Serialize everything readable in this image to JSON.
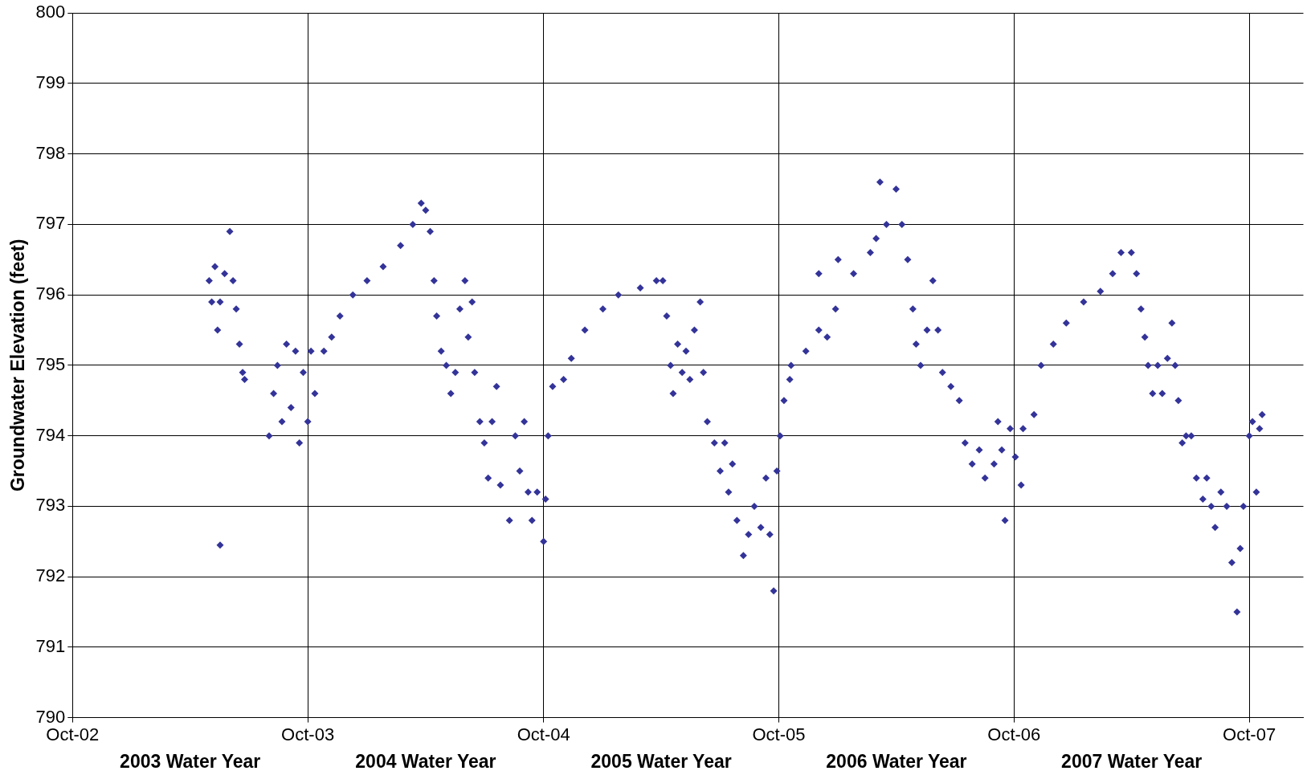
{
  "chart_data": {
    "type": "scatter",
    "ylabel": "Groundwater Elevation (feet)",
    "marker": "diamond",
    "grid": true,
    "legend": false,
    "xlim": [
      "2002-10-01",
      "2007-12-24"
    ],
    "xticks": [
      {
        "value": "2002-10-01",
        "label": "Oct-02"
      },
      {
        "value": "2003-10-01",
        "label": "Oct-03"
      },
      {
        "value": "2004-10-01",
        "label": "Oct-04"
      },
      {
        "value": "2005-10-01",
        "label": "Oct-05"
      },
      {
        "value": "2006-10-01",
        "label": "Oct-06"
      },
      {
        "value": "2007-10-01",
        "label": "Oct-07"
      }
    ],
    "ylim": [
      790,
      800
    ],
    "yticks": [
      790,
      791,
      792,
      793,
      794,
      795,
      796,
      797,
      798,
      799,
      800
    ],
    "annotations": [
      "2003 Water Year",
      "2004 Water Year",
      "2005 Water Year",
      "2006 Water Year",
      "2007 Water Year"
    ],
    "series": [
      {
        "color": "#333399",
        "x": [
          "2003-05-01",
          "2003-05-05",
          "2003-05-10",
          "2003-05-14",
          "2003-05-18",
          "2003-05-18",
          "2003-05-25",
          "2003-06-02",
          "2003-06-07",
          "2003-06-12",
          "2003-06-17",
          "2003-06-22",
          "2003-06-25",
          "2003-08-02",
          "2003-08-09",
          "2003-08-15",
          "2003-08-22",
          "2003-08-29",
          "2003-09-05",
          "2003-09-12",
          "2003-09-18",
          "2003-09-24",
          "2003-10-01",
          "2003-10-06",
          "2003-10-12",
          "2003-10-26",
          "2003-11-07",
          "2003-11-20",
          "2003-12-10",
          "2004-01-01",
          "2004-01-26",
          "2004-02-22",
          "2004-03-12",
          "2004-03-25",
          "2004-04-01",
          "2004-04-08",
          "2004-04-14",
          "2004-04-18",
          "2004-04-25",
          "2004-05-03",
          "2004-05-10",
          "2004-05-17",
          "2004-05-24",
          "2004-06-01",
          "2004-06-06",
          "2004-06-12",
          "2004-06-16",
          "2004-06-24",
          "2004-07-01",
          "2004-07-07",
          "2004-07-13",
          "2004-07-20",
          "2004-07-26",
          "2004-08-09",
          "2004-08-18",
          "2004-08-25",
          "2004-09-01",
          "2004-09-07",
          "2004-09-13",
          "2004-09-21",
          "2004-10-01",
          "2004-10-04",
          "2004-10-08",
          "2004-10-15",
          "2004-11-01",
          "2004-11-13",
          "2004-12-04",
          "2005-01-01",
          "2005-01-25",
          "2005-02-28",
          "2005-03-25",
          "2005-04-04",
          "2005-04-10",
          "2005-04-16",
          "2005-04-20",
          "2005-04-27",
          "2005-05-04",
          "2005-05-10",
          "2005-05-16",
          "2005-05-23",
          "2005-06-01",
          "2005-06-06",
          "2005-06-12",
          "2005-06-23",
          "2005-07-02",
          "2005-07-09",
          "2005-07-15",
          "2005-07-21",
          "2005-07-28",
          "2005-08-07",
          "2005-08-15",
          "2005-08-24",
          "2005-09-03",
          "2005-09-11",
          "2005-09-17",
          "2005-09-23",
          "2005-09-28",
          "2005-10-03",
          "2005-10-09",
          "2005-10-18",
          "2005-10-20",
          "2005-11-12",
          "2005-12-02",
          "2005-12-02",
          "2005-12-15",
          "2005-12-28",
          "2006-01-01",
          "2006-01-25",
          "2006-02-20",
          "2006-03-01",
          "2006-03-07",
          "2006-03-17",
          "2006-04-01",
          "2006-04-10",
          "2006-04-19",
          "2006-04-27",
          "2006-05-02",
          "2006-05-09",
          "2006-05-19",
          "2006-05-28",
          "2006-06-05",
          "2006-06-12",
          "2006-06-25",
          "2006-07-08",
          "2006-07-17",
          "2006-07-28",
          "2006-08-08",
          "2006-08-17",
          "2006-08-31",
          "2006-09-06",
          "2006-09-12",
          "2006-09-17",
          "2006-09-25",
          "2006-10-03",
          "2006-10-12",
          "2006-10-15",
          "2006-11-01",
          "2006-11-12",
          "2006-12-01",
          "2006-12-21",
          "2007-01-17",
          "2007-02-12",
          "2007-03-03",
          "2007-03-16",
          "2007-04-01",
          "2007-04-09",
          "2007-04-16",
          "2007-04-22",
          "2007-04-27",
          "2007-05-04",
          "2007-05-12",
          "2007-05-19",
          "2007-05-27",
          "2007-06-03",
          "2007-06-08",
          "2007-06-13",
          "2007-06-19",
          "2007-06-25",
          "2007-07-03",
          "2007-07-11",
          "2007-07-21",
          "2007-07-27",
          "2007-08-03",
          "2007-08-09",
          "2007-08-18",
          "2007-08-27",
          "2007-09-04",
          "2007-09-12",
          "2007-09-17",
          "2007-09-22",
          "2007-10-01",
          "2007-10-06",
          "2007-10-12",
          "2007-10-17",
          "2007-10-21"
        ],
        "values": [
          796.2,
          795.9,
          796.4,
          795.5,
          792.45,
          795.9,
          796.3,
          796.9,
          796.2,
          795.8,
          795.3,
          794.9,
          794.8,
          794.0,
          794.6,
          795.0,
          794.2,
          795.3,
          794.4,
          795.2,
          793.9,
          794.9,
          794.2,
          795.2,
          794.6,
          795.2,
          795.4,
          795.7,
          796.0,
          796.2,
          796.4,
          796.7,
          797.0,
          797.3,
          797.2,
          796.9,
          796.2,
          795.7,
          795.2,
          795.0,
          794.6,
          794.9,
          795.8,
          796.2,
          795.4,
          795.9,
          794.9,
          794.2,
          793.9,
          793.4,
          794.2,
          794.7,
          793.3,
          792.8,
          794.0,
          793.5,
          794.2,
          793.2,
          792.8,
          793.2,
          792.5,
          793.1,
          794.0,
          794.7,
          794.8,
          795.1,
          795.5,
          795.8,
          796.0,
          796.1,
          796.2,
          796.2,
          795.7,
          795.0,
          794.6,
          795.3,
          794.9,
          795.2,
          794.8,
          795.5,
          795.9,
          794.9,
          794.2,
          793.9,
          793.5,
          793.9,
          793.2,
          793.6,
          792.8,
          792.3,
          792.6,
          793.0,
          792.7,
          793.4,
          792.6,
          791.8,
          793.5,
          794.0,
          794.5,
          794.8,
          795.0,
          795.2,
          795.5,
          796.3,
          795.4,
          795.8,
          796.5,
          796.3,
          796.6,
          796.8,
          797.6,
          797.0,
          797.5,
          797.0,
          796.5,
          795.8,
          795.3,
          795.0,
          795.5,
          796.2,
          795.5,
          794.9,
          794.7,
          794.5,
          793.9,
          793.6,
          793.8,
          793.4,
          793.6,
          794.2,
          793.8,
          792.8,
          794.1,
          793.7,
          793.3,
          794.1,
          794.3,
          795.0,
          795.3,
          795.6,
          795.9,
          796.05,
          796.3,
          796.6,
          796.6,
          796.3,
          795.8,
          795.4,
          795.0,
          794.6,
          795.0,
          794.6,
          795.1,
          795.6,
          795.0,
          794.5,
          793.9,
          794.0,
          794.0,
          793.4,
          793.1,
          793.4,
          793.0,
          792.7,
          793.2,
          793.0,
          792.2,
          791.5,
          792.4,
          793.0,
          794.0,
          794.2,
          793.2,
          794.1,
          794.3
        ]
      }
    ]
  }
}
